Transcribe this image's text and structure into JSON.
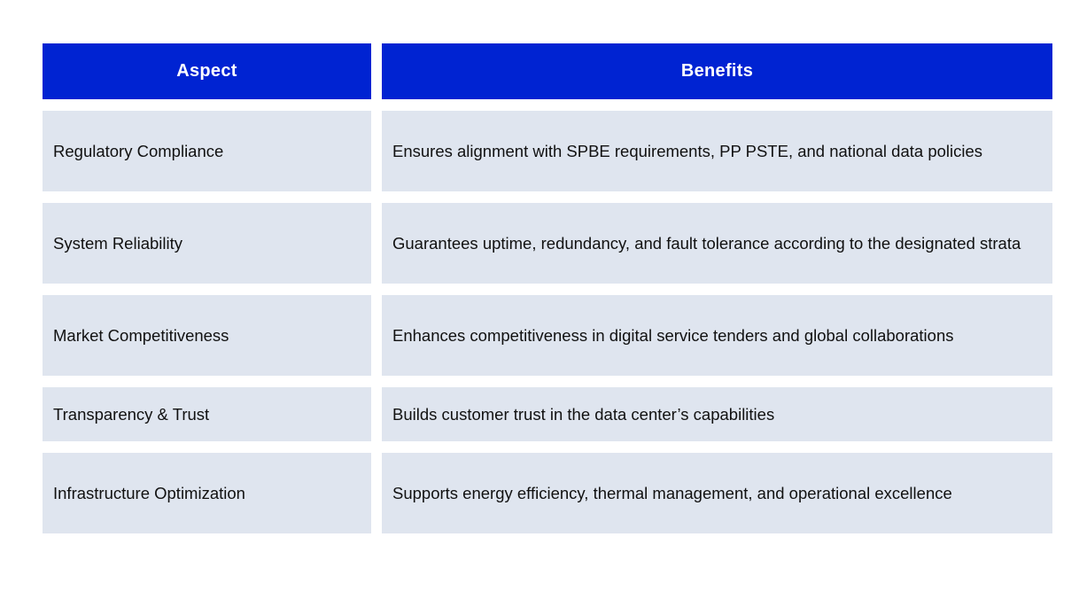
{
  "table": {
    "headers": {
      "aspect": "Aspect",
      "benefits": "Benefits"
    },
    "rows": [
      {
        "aspect": "Regulatory Compliance",
        "benefit": "Ensures alignment with SPBE requirements, PP PSTE, and national data policies"
      },
      {
        "aspect": "System Reliability",
        "benefit": "Guarantees uptime, redundancy, and fault tolerance according to the designated strata"
      },
      {
        "aspect": "Market Competitiveness",
        "benefit": "Enhances competitiveness in digital service tenders and global collaborations"
      },
      {
        "aspect": "Transparency & Trust",
        "benefit": "Builds customer trust in the data center’s capabilities"
      },
      {
        "aspect": "Infrastructure Optimization",
        "benefit": "Supports energy efficiency, thermal management, and operational excellence"
      }
    ]
  },
  "colors": {
    "header_bg": "#0023D2",
    "header_text": "#FFFFFF",
    "row_bg": "#DFE5EF",
    "row_text": "#111111"
  }
}
